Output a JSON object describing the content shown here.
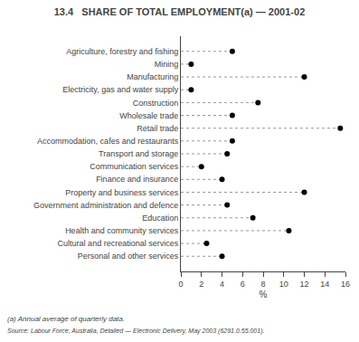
{
  "chart_data": {
    "type": "lollipop",
    "orientation": "horizontal",
    "title": "13.4   SHARE OF TOTAL EMPLOYMENT(a) — 2001-02",
    "categories": [
      "Agriculture, forestry and fishing",
      "Mining",
      "Manufacturing",
      "Electricity, gas and water supply",
      "Construction",
      "Wholesale trade",
      "Retail trade",
      "Accommodation, cafes and restaurants",
      "Transport and storage",
      "Communication services",
      "Finance and insurance",
      "Property and business services",
      "Government administration and defence",
      "Education",
      "Health and community services",
      "Cultural and recreational services",
      "Personal and other services"
    ],
    "values": [
      5.0,
      1.0,
      12.0,
      1.0,
      7.5,
      5.0,
      15.5,
      5.0,
      4.5,
      2.0,
      4.0,
      12.0,
      4.5,
      7.0,
      10.5,
      2.5,
      4.0
    ],
    "xlabel": "%",
    "xlim": [
      0,
      16
    ],
    "xticks": [
      0,
      2,
      4,
      6,
      8,
      10,
      12,
      14,
      16
    ],
    "annotations": [
      "(a) Annual average of quarterly data.",
      "Source: Labour Force, Australia, Detailed — Electronic Delivery, May 2003 (6291.0.55.001)."
    ],
    "color": "#000000",
    "grid": false
  }
}
